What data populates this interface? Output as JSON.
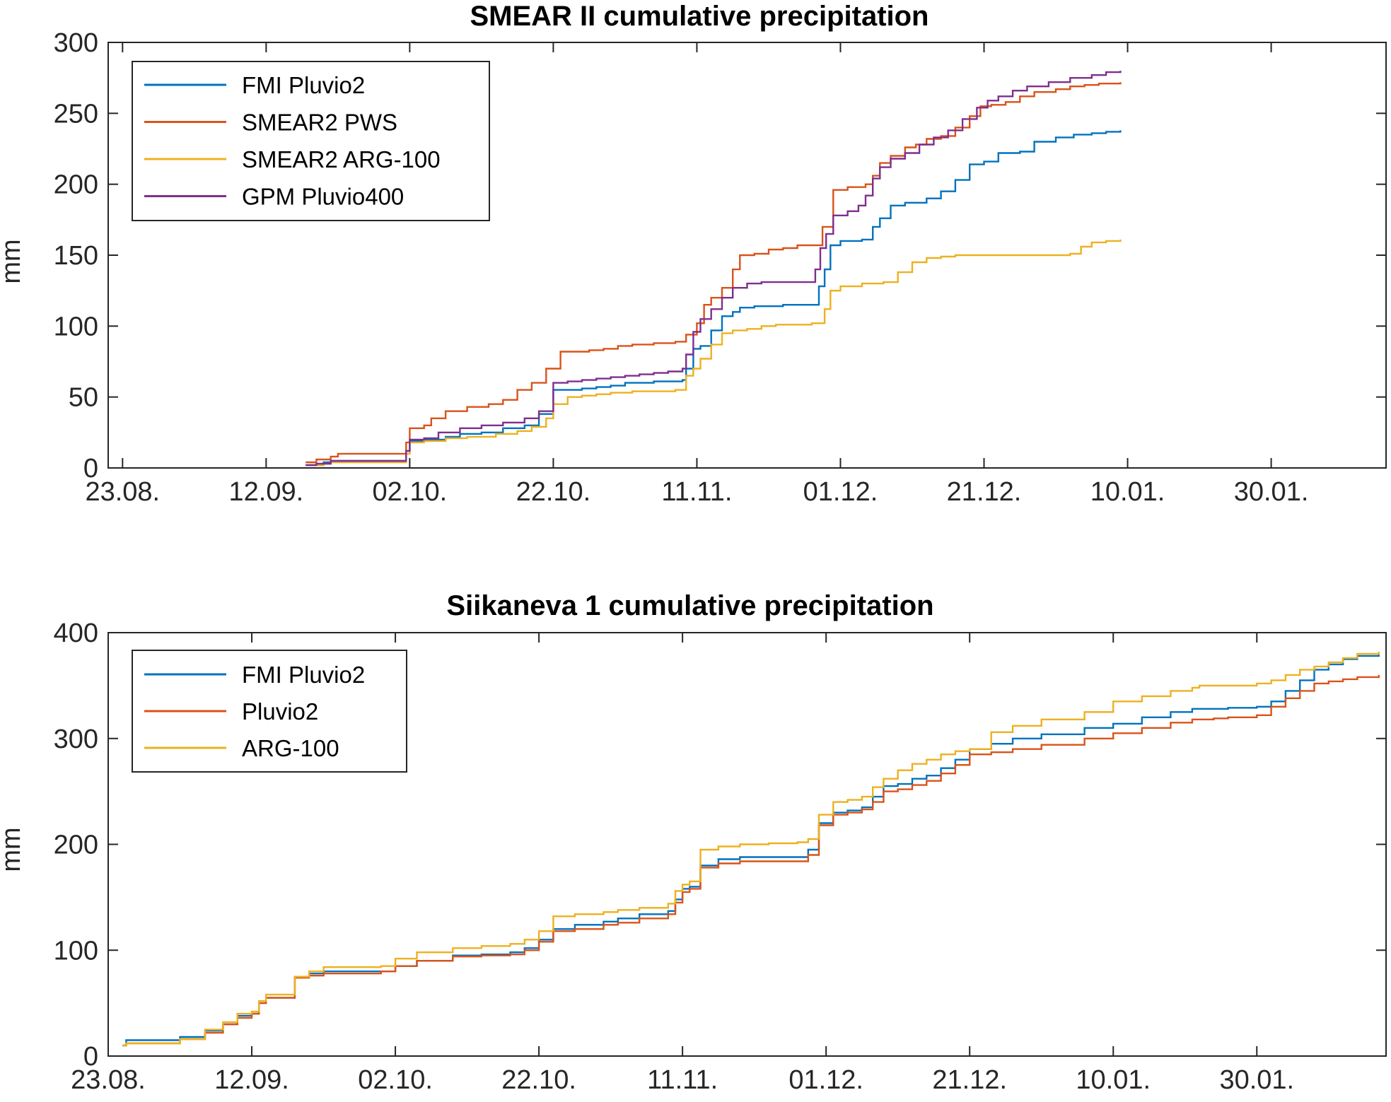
{
  "chart_data": [
    {
      "type": "line",
      "title": "SMEAR II cumulative precipitation",
      "xlabel": "",
      "ylabel": "mm",
      "x_tick_labels": [
        "23.08.",
        "12.09.",
        "02.10.",
        "22.10.",
        "11.11.",
        "01.12.",
        "21.12.",
        "10.01.",
        "30.01."
      ],
      "x_tick_days": [
        0,
        20,
        40,
        60,
        80,
        100,
        120,
        140,
        160
      ],
      "xlim_days": [
        -2,
        176
      ],
      "ylim": [
        0,
        300
      ],
      "y_ticks": [
        0,
        50,
        100,
        150,
        200,
        250,
        300
      ],
      "grid": false,
      "legend_position": "top-left",
      "series": [
        {
          "name": "FMI Pluvio2",
          "color": "#0072BD",
          "x": [
            25.5,
            28,
            29,
            37,
            39.5,
            40,
            42,
            45,
            47,
            50,
            53,
            56,
            58,
            60,
            62,
            64,
            66,
            68,
            70,
            72,
            74,
            76,
            78,
            78.5,
            79.5,
            80.5,
            82,
            83.5,
            85,
            86,
            88,
            90,
            92,
            94,
            95.5,
            97,
            97.8,
            98.6,
            100,
            102,
            103,
            104.5,
            105.5,
            107,
            109,
            112,
            114,
            116,
            118,
            120,
            122,
            125,
            127,
            130,
            132.5,
            135,
            137,
            139
          ],
          "y": [
            2,
            4,
            5,
            5,
            12,
            19,
            20,
            22,
            24,
            25,
            28,
            30,
            38,
            55,
            55,
            56,
            57,
            58,
            60,
            60,
            61,
            61,
            62,
            70,
            84,
            86,
            97,
            107,
            110,
            113,
            114,
            114,
            115,
            115,
            115,
            128,
            140,
            157,
            160,
            160,
            161,
            170,
            176,
            185,
            187,
            190,
            195,
            203,
            214,
            216,
            222,
            223,
            230,
            233,
            235,
            236,
            237,
            238
          ]
        },
        {
          "name": "SMEAR2 PWS",
          "color": "#D95319",
          "x": [
            25.5,
            27,
            29,
            30,
            37,
            39.5,
            40,
            42,
            43,
            45,
            48,
            51,
            53,
            55,
            57,
            59,
            61,
            63,
            65,
            67,
            69,
            71,
            74,
            77,
            78.5,
            80,
            81,
            82,
            83.5,
            85,
            86,
            88,
            90,
            92,
            94,
            96.5,
            97.5,
            99,
            101,
            103.5,
            104.5,
            105.5,
            107,
            109,
            110.5,
            112,
            114,
            116,
            118,
            119.5,
            121,
            123,
            125,
            127,
            130,
            132,
            134,
            136,
            139
          ],
          "y": [
            4,
            6,
            8,
            10,
            10,
            18,
            28,
            30,
            35,
            40,
            43,
            45,
            48,
            55,
            60,
            70,
            82,
            82,
            83,
            84,
            86,
            87,
            88,
            89,
            94,
            102,
            115,
            120,
            127,
            140,
            150,
            151,
            154,
            155,
            157,
            157,
            170,
            196,
            198,
            200,
            206,
            215,
            220,
            226,
            228,
            232,
            234,
            240,
            248,
            255,
            256,
            258,
            262,
            265,
            267,
            269,
            270,
            271,
            272
          ]
        },
        {
          "name": "SMEAR2 ARG-100",
          "color": "#EDB120",
          "x": [
            25.5,
            28,
            29,
            37,
            39.5,
            40,
            42,
            45,
            48,
            52,
            55,
            57,
            59,
            60,
            62,
            64,
            66,
            68,
            71,
            73,
            75,
            77,
            78.5,
            79.5,
            80.5,
            82,
            83.5,
            85,
            87,
            89,
            91,
            94,
            96,
            97,
            97.8,
            98.6,
            100,
            103,
            106,
            108,
            110,
            112,
            114,
            116,
            120,
            125,
            130,
            132,
            133.5,
            135,
            137,
            139
          ],
          "y": [
            2,
            3,
            4,
            4,
            10,
            18,
            19,
            21,
            22,
            24,
            26,
            29,
            35,
            45,
            50,
            51,
            52,
            53,
            54,
            54,
            54,
            55,
            65,
            70,
            77,
            87,
            95,
            97,
            98,
            100,
            101,
            101,
            102,
            102,
            112,
            125,
            128,
            130,
            131,
            138,
            145,
            148,
            149,
            150,
            150,
            150,
            150,
            151,
            156,
            159,
            160,
            161
          ]
        },
        {
          "name": "GPM Pluvio400",
          "color": "#7E2F8E",
          "x": [
            25.5,
            27,
            29,
            37,
            39.5,
            40,
            42,
            44,
            47,
            50,
            53,
            56,
            58,
            60,
            62,
            64,
            66,
            68,
            70,
            72,
            74,
            76,
            78,
            78.5,
            79.5,
            80.5,
            82,
            83.5,
            85,
            87,
            89,
            91,
            94,
            95.5,
            96.5,
            97.2,
            98,
            99,
            101,
            102.5,
            103.5,
            104.5,
            105.5,
            107,
            109,
            111,
            113,
            115,
            117,
            119,
            120.5,
            122,
            124,
            126,
            129,
            132,
            135,
            137,
            139
          ],
          "y": [
            2,
            3,
            5,
            5,
            12,
            20,
            21,
            25,
            28,
            30,
            32,
            35,
            40,
            60,
            61,
            62,
            63,
            64,
            65,
            66,
            67,
            68,
            70,
            80,
            96,
            105,
            112,
            120,
            127,
            130,
            131,
            131,
            131,
            131,
            140,
            155,
            165,
            178,
            181,
            185,
            192,
            204,
            212,
            218,
            222,
            228,
            233,
            238,
            246,
            254,
            259,
            262,
            266,
            269,
            272,
            275,
            277,
            279,
            280
          ]
        }
      ]
    },
    {
      "type": "line",
      "title": "Siikaneva 1 cumulative precipitation",
      "xlabel": "",
      "ylabel": "mm",
      "x_tick_labels": [
        "23.08.",
        "12.09.",
        "02.10.",
        "22.10.",
        "11.11.",
        "01.12.",
        "21.12.",
        "10.01.",
        "30.01."
      ],
      "x_tick_days": [
        0,
        20,
        40,
        60,
        80,
        100,
        120,
        140,
        160
      ],
      "xlim_days": [
        0,
        178
      ],
      "ylim": [
        0,
        400
      ],
      "y_ticks": [
        0,
        100,
        200,
        300,
        400
      ],
      "grid": false,
      "legend_position": "top-left",
      "series": [
        {
          "name": "FMI Pluvio2",
          "color": "#0072BD",
          "x": [
            2,
            2.5,
            9,
            10,
            13,
            13.5,
            16,
            18,
            20,
            21,
            22,
            26,
            28,
            30,
            38,
            40,
            43,
            48,
            52,
            56,
            58,
            60,
            62,
            65,
            69,
            71,
            74,
            78,
            79,
            80,
            81,
            82.5,
            85,
            88,
            92,
            96,
            97.5,
            99,
            101,
            103,
            105,
            106.5,
            108,
            110,
            112,
            114,
            116,
            118,
            120,
            123,
            126,
            130,
            136,
            140,
            144,
            148,
            151,
            152,
            154,
            156,
            160,
            162,
            164,
            166,
            168,
            170,
            172,
            174,
            177
          ],
          "y": [
            10,
            15,
            15,
            18,
            18,
            24,
            30,
            38,
            40,
            50,
            55,
            75,
            78,
            80,
            80,
            85,
            90,
            95,
            96,
            98,
            102,
            110,
            120,
            124,
            127,
            130,
            134,
            137,
            148,
            158,
            160,
            180,
            186,
            188,
            188,
            188,
            195,
            220,
            230,
            232,
            235,
            245,
            255,
            257,
            262,
            265,
            272,
            280,
            290,
            295,
            300,
            304,
            310,
            314,
            320,
            325,
            328,
            328,
            328,
            329,
            330,
            335,
            345,
            355,
            365,
            370,
            375,
            378,
            380
          ]
        },
        {
          "name": "Pluvio2",
          "color": "#D95319",
          "x": [
            2,
            2.5,
            9,
            10,
            13,
            13.5,
            16,
            18,
            20,
            21,
            22,
            26,
            28,
            30,
            38,
            40,
            43,
            48,
            52,
            56,
            58,
            60,
            62,
            65,
            69,
            71,
            74,
            78,
            79,
            80,
            81,
            82.5,
            85,
            88,
            92,
            96,
            97.5,
            99,
            101,
            103,
            105,
            106.5,
            108,
            110,
            112,
            114,
            116,
            118,
            120,
            123,
            126,
            130,
            136,
            140,
            144,
            148,
            151,
            152,
            154,
            156,
            160,
            162,
            164,
            166,
            168,
            170,
            172,
            174,
            177
          ],
          "y": [
            10,
            12,
            12,
            16,
            16,
            22,
            30,
            36,
            40,
            50,
            55,
            74,
            76,
            78,
            80,
            85,
            90,
            94,
            95,
            96,
            100,
            108,
            118,
            120,
            124,
            126,
            130,
            134,
            145,
            155,
            158,
            178,
            182,
            184,
            184,
            184,
            190,
            218,
            228,
            230,
            233,
            240,
            250,
            252,
            256,
            260,
            267,
            275,
            285,
            287,
            290,
            294,
            300,
            305,
            310,
            315,
            318,
            318,
            319,
            320,
            322,
            330,
            338,
            345,
            352,
            354,
            356,
            358,
            360
          ]
        },
        {
          "name": "ARG-100",
          "color": "#EDB120",
          "x": [
            2,
            2.5,
            9,
            10,
            13,
            13.5,
            16,
            18,
            20,
            21,
            22,
            26,
            28,
            30,
            38,
            40,
            43,
            48,
            52,
            56,
            58,
            60,
            62,
            65,
            69,
            71,
            74,
            78,
            79,
            80,
            81,
            82.5,
            85,
            88,
            92,
            96,
            97.5,
            99,
            101,
            103,
            105,
            106.5,
            108,
            110,
            112,
            114,
            116,
            118,
            120,
            123,
            126,
            130,
            136,
            140,
            144,
            148,
            151,
            152,
            154,
            156,
            160,
            162,
            164,
            166,
            168,
            170,
            172,
            174,
            177
          ],
          "y": [
            10,
            12,
            12,
            16,
            16,
            25,
            32,
            40,
            42,
            52,
            58,
            75,
            80,
            84,
            85,
            92,
            98,
            102,
            104,
            106,
            110,
            118,
            132,
            134,
            136,
            138,
            140,
            144,
            156,
            162,
            165,
            195,
            198,
            200,
            201,
            202,
            205,
            228,
            240,
            242,
            245,
            254,
            262,
            270,
            276,
            280,
            285,
            288,
            290,
            306,
            312,
            318,
            325,
            335,
            340,
            345,
            348,
            350,
            350,
            350,
            352,
            355,
            360,
            365,
            368,
            372,
            376,
            380,
            382
          ]
        }
      ]
    }
  ]
}
